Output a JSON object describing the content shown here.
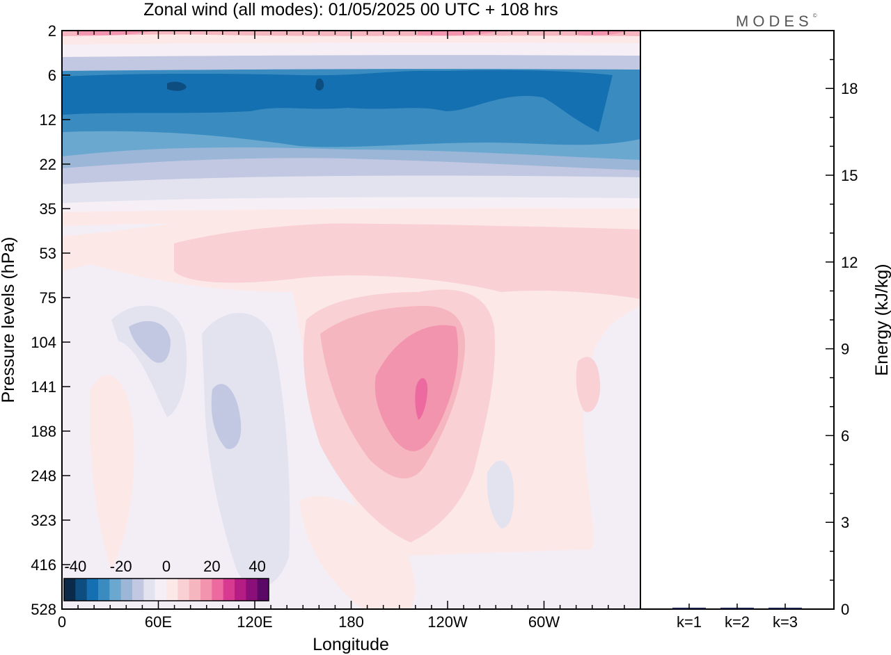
{
  "title": "Zonal wind (all modes):  01/05/2025  00 UTC  + 108 hrs",
  "logo": "MODES",
  "logo_mark": "©",
  "colorbar": {
    "tick_labels": [
      "-40",
      "-20",
      "0",
      "20",
      "40"
    ],
    "colors": [
      "#0b2a4a",
      "#0d4d80",
      "#1470b0",
      "#3a8cc0",
      "#6aa8d0",
      "#9cb6d8",
      "#c2c8e2",
      "#e3e3f0",
      "#f6f0f6",
      "#fde8e8",
      "#f9d0d4",
      "#f6b6c0",
      "#f394ae",
      "#ec6aa0",
      "#d83a92",
      "#b51c84",
      "#8a0f78",
      "#5a0a66"
    ]
  },
  "chart_data": [
    {
      "type": "heatmap",
      "title": "Zonal wind (all modes):  01/05/2025  00 UTC  + 108 hrs",
      "xlabel": "Longitude",
      "ylabel": "Pressure levels (hPa)",
      "x_ticks": [
        "0",
        "60E",
        "120E",
        "180",
        "120W",
        "60W"
      ],
      "x_tick_values": [
        0,
        60,
        120,
        180,
        240,
        300
      ],
      "xlim": [
        0,
        360
      ],
      "y_ticks": [
        "2",
        "6",
        "12",
        "22",
        "35",
        "53",
        "75",
        "104",
        "141",
        "188",
        "248",
        "323",
        "416",
        "528"
      ],
      "y_scale": "log",
      "colorbar_range": [
        -45,
        45
      ],
      "features": [
        {
          "region": "2 hPa",
          "value": 20
        },
        {
          "region": "6-22 hPa",
          "value": -35
        },
        {
          "region": "104-188 hPa, 200-230E",
          "value": 30
        },
        {
          "region": "104-141 hPa, 70-80E",
          "value": -12
        }
      ]
    },
    {
      "type": "bar",
      "xlabel": "",
      "ylabel": "Energy (kJ/kg)",
      "categories": [
        "k=1",
        "k=2",
        "k=3"
      ],
      "values": [
        0.03,
        0.02,
        0.02
      ],
      "ylim": [
        0,
        20
      ],
      "y_ticks": [
        "0",
        "3",
        "6",
        "9",
        "12",
        "15",
        "18"
      ],
      "y_tick_values": [
        0,
        3,
        6,
        9,
        12,
        15,
        18
      ]
    }
  ]
}
